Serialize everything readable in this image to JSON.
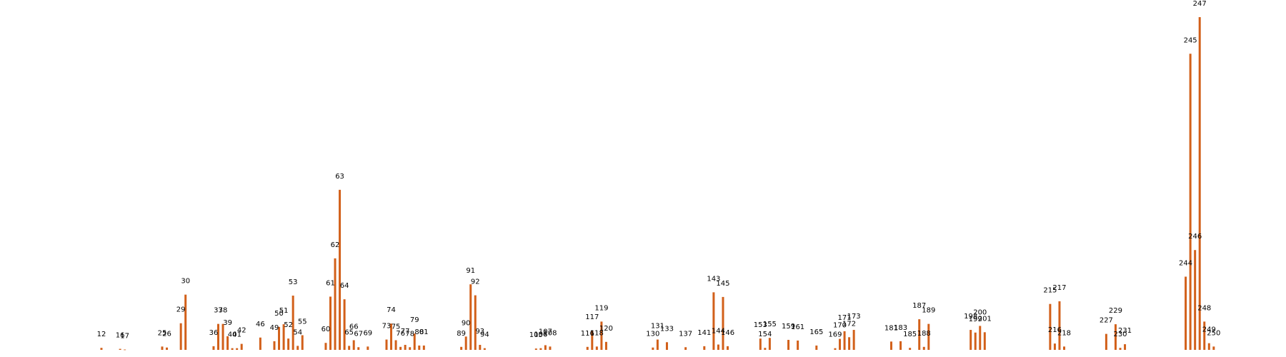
{
  "chart_data": {
    "type": "bar",
    "color": "#d2601a",
    "x_domain": [
      1,
      254
    ],
    "ylim": [
      0,
      100
    ],
    "grid": false,
    "legend": "none",
    "title": "",
    "xlabel": "",
    "ylabel": "",
    "x": [
      12,
      16,
      17,
      25,
      26,
      29,
      30,
      36,
      37,
      38,
      39,
      40,
      41,
      42,
      46,
      49,
      50,
      51,
      52,
      53,
      54,
      55,
      60,
      61,
      62,
      63,
      64,
      65,
      66,
      67,
      69,
      73,
      74,
      75,
      76,
      77,
      78,
      79,
      80,
      81,
      89,
      90,
      91,
      92,
      93,
      94,
      105,
      106,
      107,
      108,
      116,
      117,
      118,
      119,
      120,
      130,
      131,
      133,
      137,
      141,
      143,
      144,
      145,
      146,
      153,
      154,
      155,
      159,
      161,
      165,
      169,
      170,
      171,
      172,
      173,
      181,
      183,
      185,
      187,
      188,
      189,
      198,
      199,
      200,
      201,
      215,
      216,
      217,
      218,
      227,
      229,
      230,
      231,
      244,
      245,
      246,
      247,
      248,
      249,
      250
    ],
    "values": [
      0.6,
      0.3,
      0.1,
      1.0,
      0.7,
      8.0,
      16.6,
      1.1,
      7.8,
      7.8,
      4.1,
      0.5,
      0.5,
      1.8,
      3.7,
      2.6,
      6.9,
      7.7,
      3.4,
      16.3,
      1.2,
      4.4,
      2.1,
      16.0,
      27.5,
      48.1,
      15.2,
      1.2,
      2.9,
      0.8,
      1.0,
      3.1,
      7.9,
      2.9,
      0.9,
      1.5,
      0.8,
      4.9,
      1.3,
      1.3,
      0.9,
      4.0,
      19.7,
      16.4,
      1.5,
      0.5,
      0.4,
      0.5,
      1.4,
      1.0,
      0.9,
      5.8,
      1.0,
      8.5,
      2.4,
      0.7,
      3.1,
      2.3,
      0.8,
      1.1,
      17.3,
      1.6,
      15.9,
      1.1,
      3.4,
      0.6,
      3.6,
      3.0,
      2.8,
      1.3,
      0.5,
      3.3,
      5.6,
      3.8,
      6.0,
      2.5,
      2.6,
      0.6,
      9.2,
      0.9,
      7.8,
      6.0,
      5.2,
      7.2,
      5.3,
      13.8,
      1.9,
      14.6,
      1.0,
      4.8,
      7.7,
      0.6,
      1.7,
      22.0,
      89.0,
      30.0,
      100.0,
      8.5,
      2.0,
      1.0
    ]
  }
}
